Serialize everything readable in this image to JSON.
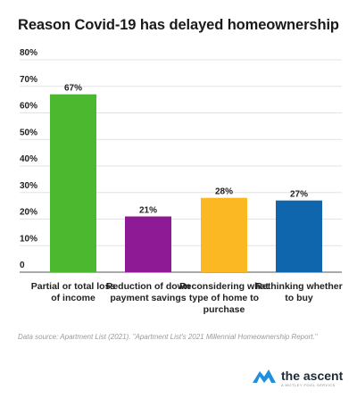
{
  "chart_data": {
    "type": "bar",
    "title": "Reason Covid-19 has delayed homeownership",
    "categories": [
      [
        "Partial or total loss",
        "of income"
      ],
      [
        "Reduction of down",
        "payment savings"
      ],
      [
        "Reconsidering what",
        "type of home to",
        "purchase"
      ],
      [
        "Rethinking whether",
        "to buy"
      ]
    ],
    "values": [
      67,
      21,
      28,
      27
    ],
    "value_labels": [
      "67%",
      "21%",
      "28%",
      "27%"
    ],
    "colors": [
      "#4cb82f",
      "#8f1a96",
      "#fbb822",
      "#1066ac"
    ],
    "yticks": [
      "0",
      "10%",
      "20%",
      "30%",
      "40%",
      "50%",
      "60%",
      "70%",
      "80%"
    ],
    "ylim": [
      0,
      80
    ],
    "grid": true,
    "legend": "none"
  },
  "source": "Data source: Apartment List (2021). \"Apartment List's 2021 Millennial Homeownership Report.\"",
  "brand": {
    "name": "the ascent",
    "tagline": "A MOTLEY FOOL SERVICE",
    "icon": "ascent-logo-icon",
    "colors": [
      "#1f8fe0",
      "#1c2b39"
    ]
  }
}
